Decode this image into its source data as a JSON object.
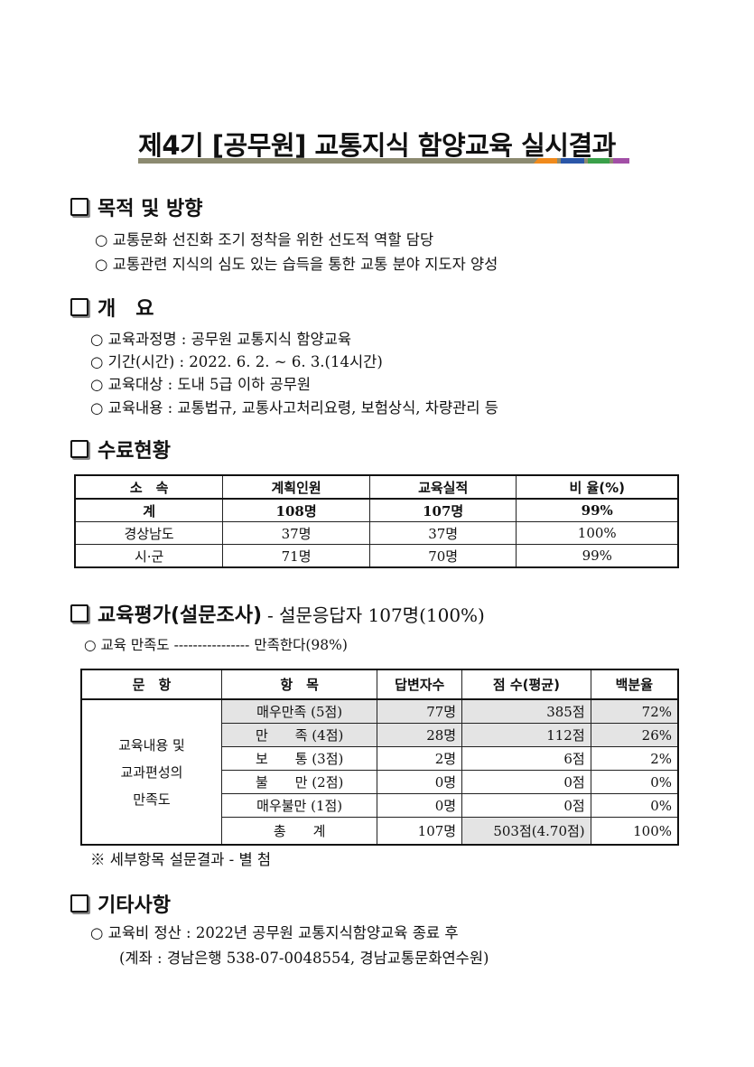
{
  "title": "제4기 [공무원] 교통지식 함양교육 실시결과",
  "accent_colors": [
    "#8c8a70",
    "#f08a1c",
    "#2a56a8",
    "#3aa04a",
    "#a24fa6"
  ],
  "sections": {
    "purpose": {
      "heading": "목적 및 방향",
      "bullets": [
        "교통문화 선진화 조기 정착을 위한 선도적 역할 담당",
        "교통관련 지식의 심도 있는 습득을 통한 교통 분야 지도자 양성"
      ]
    },
    "overview": {
      "heading": "개　요",
      "bullets": [
        "교육과정명 : 공무원 교통지식 함양교육",
        "기간(시간) : 2022. 6. 2. ~ 6. 3.(14시간)",
        "교육대상 : 도내 5급 이하 공무원",
        "교육내용 : 교통법규,  교통사고처리요령, 보험상식, 차량관리 등"
      ]
    },
    "completion": {
      "heading": "수료현황",
      "headers": [
        "소　속",
        "계획인원",
        "교육실적",
        "비 율(%)"
      ],
      "rows": [
        [
          "계",
          "108명",
          "107명",
          "99%"
        ],
        [
          "경상남도",
          "37명",
          "37명",
          "100%"
        ],
        [
          "시·군",
          "71명",
          "70명",
          "99%"
        ]
      ]
    },
    "evaluation": {
      "heading": "교육평가(설문조사)",
      "subtitle": "- 설문응답자 107명(100%)",
      "bullet": "교육 만족도 ---------------- 만족한다(98%)",
      "headers": [
        "문　항",
        "항　목",
        "답변자수",
        "점 수(평균)",
        "백분율"
      ],
      "question": [
        "교육내용 및",
        "교과편성의",
        "만족도"
      ],
      "rows": [
        [
          "매우만족 (5점)",
          "77명",
          "385점",
          "72%"
        ],
        [
          "만　　족 (4점)",
          "28명",
          "112점",
          "26%"
        ],
        [
          "보　　통 (3점)",
          "2명",
          "6점",
          "2%"
        ],
        [
          "불　　만 (2점)",
          "0명",
          "0점",
          "0%"
        ],
        [
          "매우불만 (1점)",
          "0명",
          "0점",
          "0%"
        ],
        [
          "총　　계",
          "107명",
          "503점(4.70점)",
          "100%"
        ]
      ],
      "note": "※ 세부항목 설문결과 - 별 첨"
    },
    "other": {
      "heading": "기타사항",
      "bullets": [
        "교육비 정산 : 2022년 공무원 교통지식함양교육 종료 후",
        "(계좌 : 경남은행 538-07-0048554, 경남교통문화연수원)"
      ]
    }
  }
}
